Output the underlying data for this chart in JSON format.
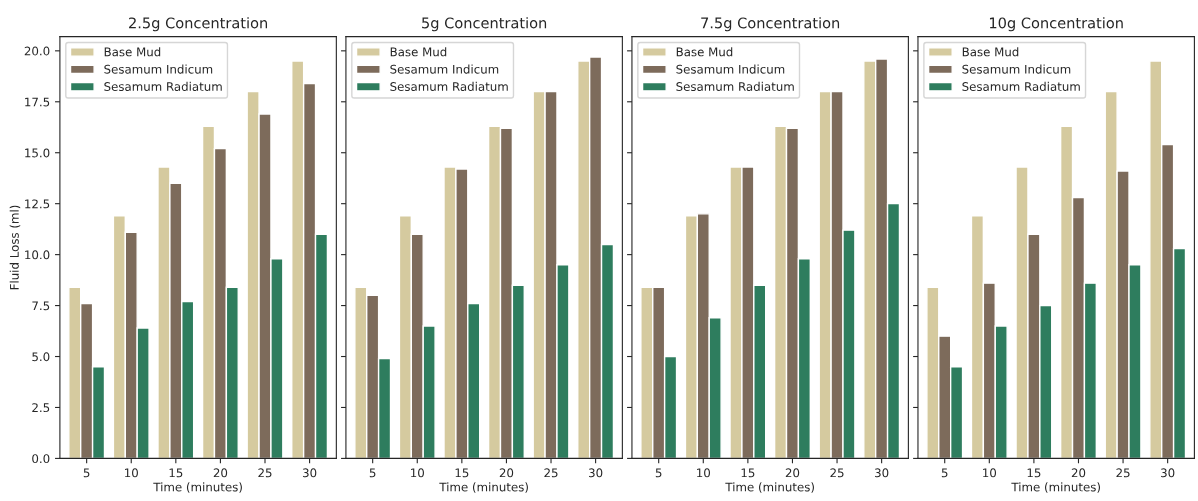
{
  "chart_data": [
    {
      "type": "bar",
      "title": "2.5g Concentration",
      "xlabel": "Time (minutes)",
      "ylabel": "Fluid Loss (ml)",
      "categories": [
        "5",
        "10",
        "15",
        "20",
        "25",
        "30"
      ],
      "ylim": [
        0,
        20.7
      ],
      "yticks": [
        {
          "value": 0,
          "label": "0.0"
        },
        2.5,
        {
          "value": 5,
          "label": "5.0"
        },
        7.5,
        {
          "value": 10,
          "label": "10.0"
        },
        12.5,
        {
          "value": 15,
          "label": "15.0"
        },
        17.5,
        {
          "value": 20,
          "label": "20.0"
        }
      ],
      "legend": "top left",
      "grid": false,
      "series": [
        {
          "name": "Base Mud",
          "color": "#d5ca9f",
          "values": [
            8.4,
            11.9,
            14.3,
            16.3,
            18.0,
            19.5
          ]
        },
        {
          "name": "Sesamum Indicum",
          "color": "#7d6b5b",
          "values": [
            7.6,
            11.1,
            13.5,
            15.2,
            16.9,
            18.4
          ]
        },
        {
          "name": "Sesamum Radiatum",
          "color": "#2e7d5e",
          "values": [
            4.5,
            6.4,
            7.7,
            8.4,
            9.8,
            11.0
          ]
        }
      ]
    },
    {
      "type": "bar",
      "title": "5g Concentration",
      "xlabel": "Time (minutes)",
      "categories": [
        "5",
        "10",
        "15",
        "20",
        "25",
        "30"
      ],
      "ylim": [
        0,
        20.7
      ],
      "yticks": [
        {
          "value": 0,
          "label": null
        },
        {
          "value": 2.5,
          "label": null
        },
        {
          "value": 5,
          "label": null
        },
        {
          "value": 7.5,
          "label": null
        },
        {
          "value": 10,
          "label": null
        },
        {
          "value": 12.5,
          "label": null
        },
        {
          "value": 15,
          "label": null
        },
        {
          "value": 17.5,
          "label": null
        },
        {
          "value": 20,
          "label": null
        }
      ],
      "tick_labels": "x",
      "legend": "top left",
      "grid": false,
      "series": [
        {
          "name": "Base Mud",
          "color": "#d5ca9f",
          "values": [
            8.4,
            11.9,
            14.3,
            16.3,
            18.0,
            19.5
          ]
        },
        {
          "name": "Sesamum Indicum",
          "color": "#7d6b5b",
          "values": [
            8.0,
            11.0,
            14.2,
            16.2,
            18.0,
            19.7
          ]
        },
        {
          "name": "Sesamum Radiatum",
          "color": "#2e7d5e",
          "values": [
            4.9,
            6.5,
            7.6,
            8.5,
            9.5,
            10.5
          ]
        }
      ]
    },
    {
      "type": "bar",
      "title": "7.5g Concentration",
      "xlabel": "Time (minutes)",
      "categories": [
        "5",
        "10",
        "15",
        "20",
        "25",
        "30"
      ],
      "ylim": [
        0,
        20.7
      ],
      "yticks": [
        {
          "value": 0,
          "label": null
        },
        {
          "value": 2.5,
          "label": null
        },
        {
          "value": 5,
          "label": null
        },
        {
          "value": 7.5,
          "label": null
        },
        {
          "value": 10,
          "label": null
        },
        {
          "value": 12.5,
          "label": null
        },
        {
          "value": 15,
          "label": null
        },
        {
          "value": 17.5,
          "label": null
        },
        {
          "value": 20,
          "label": null
        }
      ],
      "tick_labels": "x",
      "legend": "top left",
      "grid": false,
      "series": [
        {
          "name": "Base Mud",
          "color": "#d5ca9f",
          "values": [
            8.4,
            11.9,
            14.3,
            16.3,
            18.0,
            19.5
          ]
        },
        {
          "name": "Sesamum Indicum",
          "color": "#7d6b5b",
          "values": [
            8.4,
            12.0,
            14.3,
            16.2,
            18.0,
            19.6
          ]
        },
        {
          "name": "Sesamum Radiatum",
          "color": "#2e7d5e",
          "values": [
            5.0,
            6.9,
            8.5,
            9.8,
            11.2,
            12.5
          ]
        }
      ]
    },
    {
      "type": "bar",
      "title": "10g Concentration",
      "xlabel": "Time (minutes)",
      "categories": [
        "5",
        "10",
        "15",
        "20",
        "25",
        "30"
      ],
      "ylim": [
        0,
        20.7
      ],
      "yticks": [
        {
          "value": 0,
          "label": null
        },
        {
          "value": 2.5,
          "label": null
        },
        {
          "value": 5,
          "label": null
        },
        {
          "value": 7.5,
          "label": null
        },
        {
          "value": 10,
          "label": null
        },
        {
          "value": 12.5,
          "label": null
        },
        {
          "value": 15,
          "label": null
        },
        {
          "value": 17.5,
          "label": null
        },
        {
          "value": 20,
          "label": null
        }
      ],
      "tick_labels": "x",
      "legend": "top left",
      "grid": false,
      "series": [
        {
          "name": "Base Mud",
          "color": "#d5ca9f",
          "values": [
            8.4,
            11.9,
            14.3,
            16.3,
            18.0,
            19.5
          ]
        },
        {
          "name": "Sesamum Indicum",
          "color": "#7d6b5b",
          "values": [
            6.0,
            8.6,
            11.0,
            12.8,
            14.1,
            15.4
          ]
        },
        {
          "name": "Sesamum Radiatum",
          "color": "#2e7d5e",
          "values": [
            4.5,
            6.5,
            7.5,
            8.6,
            9.5,
            10.3
          ]
        }
      ]
    }
  ]
}
